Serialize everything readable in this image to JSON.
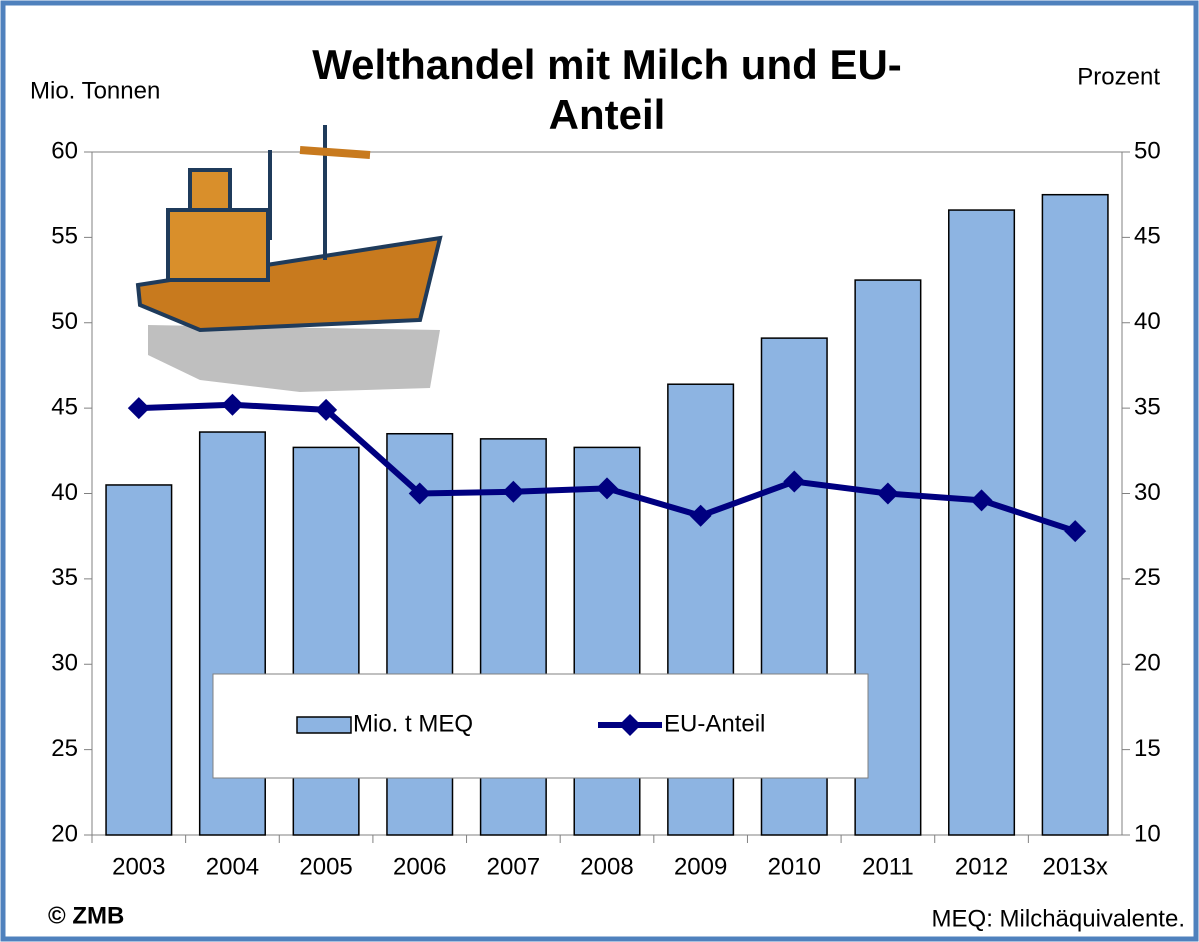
{
  "chart_data": {
    "type": "bar_line",
    "title": "Welthandel mit Milch und EU-Anteil",
    "y_label": "Mio. Tonnen",
    "y2_label": "Prozent",
    "source": "© ZMB",
    "note": "MEQ: Milchäquivalente.",
    "categories": [
      "2003",
      "2004",
      "2005",
      "2006",
      "2007",
      "2008",
      "2009",
      "2010",
      "2011",
      "2012",
      "2013x"
    ],
    "series": [
      {
        "name": "Mio. t MEQ",
        "type": "bar",
        "color": "#8db4e2",
        "values": [
          40.5,
          43.6,
          42.7,
          43.5,
          43.2,
          42.7,
          46.4,
          49.1,
          52.5,
          56.6,
          57.5
        ]
      },
      {
        "name": "EU-Anteil",
        "type": "line",
        "axis": "y2",
        "color": "#000080",
        "values": [
          35.0,
          35.2,
          34.9,
          30.0,
          30.1,
          30.3,
          28.7,
          30.7,
          30.0,
          29.6,
          27.8
        ]
      }
    ],
    "ylim": [
      20,
      60
    ],
    "yticks": [
      20,
      25,
      30,
      35,
      40,
      45,
      50,
      55,
      60
    ],
    "y2lim": [
      10,
      50
    ],
    "y2ticks": [
      10,
      15,
      20,
      25,
      30,
      35,
      40,
      45,
      50
    ],
    "legend": "bottom"
  }
}
